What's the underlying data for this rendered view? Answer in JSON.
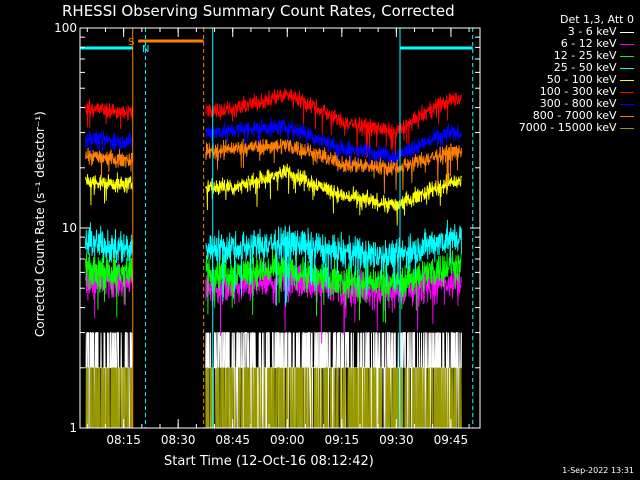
{
  "chart_data": {
    "type": "line",
    "title": "RHESSI Observing Summary Count Rates, Corrected",
    "xlabel": "Start Time (12-Oct-16 08:12:42)",
    "ylabel": "Corrected Count Rate (s⁻¹ detector⁻¹)",
    "yscale": "log",
    "ylim": [
      1,
      100
    ],
    "xlim_minutes": [
      -12,
      98
    ],
    "x_ticks": [
      {
        "minute": 0,
        "label": "08:15"
      },
      {
        "minute": 15,
        "label": "08:30"
      },
      {
        "minute": 30,
        "label": "08:45"
      },
      {
        "minute": 45,
        "label": "09:00"
      },
      {
        "minute": 60,
        "label": "09:15"
      },
      {
        "minute": 75,
        "label": "09:30"
      },
      {
        "minute": 90,
        "label": "09:45"
      }
    ],
    "y_ticks": [
      {
        "value": 1,
        "label": "1"
      },
      {
        "value": 10,
        "label": "10"
      },
      {
        "value": 100,
        "label": "100"
      }
    ],
    "legend_header": "Det 1,3, Att 0",
    "legend_position": "right",
    "data_gaps_minutes": [
      [
        2.5,
        22.5
      ]
    ],
    "series": [
      {
        "name": "3 - 6 keV",
        "color": "#ffffff",
        "levels": [
          1,
          2,
          3
        ],
        "t": [
          -10,
          0,
          30,
          60,
          90
        ],
        "median": [
          2.5,
          2.5,
          2.5,
          2.5,
          2.5
        ]
      },
      {
        "name": "6 - 12 keV",
        "color": "#ff00ff",
        "t": [
          -10,
          0,
          30,
          45,
          60,
          75,
          90
        ],
        "median": [
          5.5,
          5.5,
          5,
          5.5,
          5,
          4.8,
          5.5
        ]
      },
      {
        "name": "12 - 25 keV",
        "color": "#00ff00",
        "t": [
          -10,
          0,
          30,
          45,
          60,
          75,
          90
        ],
        "median": [
          6,
          6,
          6,
          6.2,
          5.5,
          5.3,
          6.5
        ]
      },
      {
        "name": "25 - 50 keV",
        "color": "#00ffff",
        "t": [
          -10,
          0,
          30,
          45,
          60,
          75,
          90
        ],
        "median": [
          8.5,
          8,
          8,
          8.5,
          7.5,
          7.2,
          9
        ]
      },
      {
        "name": "50 - 100 keV",
        "color": "#ffff00",
        "t": [
          -10,
          0,
          30,
          45,
          60,
          75,
          90
        ],
        "median": [
          17,
          16.5,
          16,
          19,
          14.5,
          13,
          17
        ]
      },
      {
        "name": "100 - 300 keV",
        "color": "#ff0000",
        "t": [
          -10,
          0,
          30,
          45,
          60,
          75,
          90
        ],
        "median": [
          40,
          38,
          39,
          47,
          34,
          30,
          44
        ]
      },
      {
        "name": "300 - 800 keV",
        "color": "#0000ff",
        "t": [
          -10,
          0,
          30,
          45,
          60,
          75,
          90
        ],
        "median": [
          28,
          27,
          31,
          32,
          25,
          23,
          30
        ]
      },
      {
        "name": "800 - 7000 keV",
        "color": "#ff8000",
        "t": [
          -10,
          0,
          30,
          45,
          60,
          75,
          90
        ],
        "median": [
          23,
          22,
          25,
          26,
          21,
          20,
          24
        ]
      },
      {
        "name": "7000 - 15000 keV",
        "color": "#999900",
        "levels": [
          1,
          2
        ],
        "t": [
          -10,
          0,
          30,
          60,
          90
        ],
        "median": [
          1.5,
          1.5,
          1.5,
          1.5,
          1.5
        ]
      }
    ],
    "flags": [
      {
        "label": "S",
        "color": "#ff8000",
        "start_min": 4,
        "end_min": 22
      },
      {
        "label": "N",
        "color": "#00ffff",
        "start_min": -12,
        "end_min": 2.5
      },
      {
        "label": "",
        "color": "#00ffff",
        "start_min": 76,
        "end_min": 96
      }
    ],
    "vlines": [
      {
        "minute": 2.5,
        "color": "#ff8000",
        "style": "solid"
      },
      {
        "minute": 6,
        "color": "#00ffff",
        "style": "dashed"
      },
      {
        "minute": 22,
        "color": "#ff8000",
        "style": "dashed"
      },
      {
        "minute": 24.5,
        "color": "#00ffff",
        "style": "solid"
      },
      {
        "minute": 76,
        "color": "#00ffff",
        "style": "solid"
      },
      {
        "minute": 96,
        "color": "#00ffff",
        "style": "dashed"
      }
    ]
  },
  "footer": {
    "datestamp": "1-Sep-2022 13:31"
  }
}
